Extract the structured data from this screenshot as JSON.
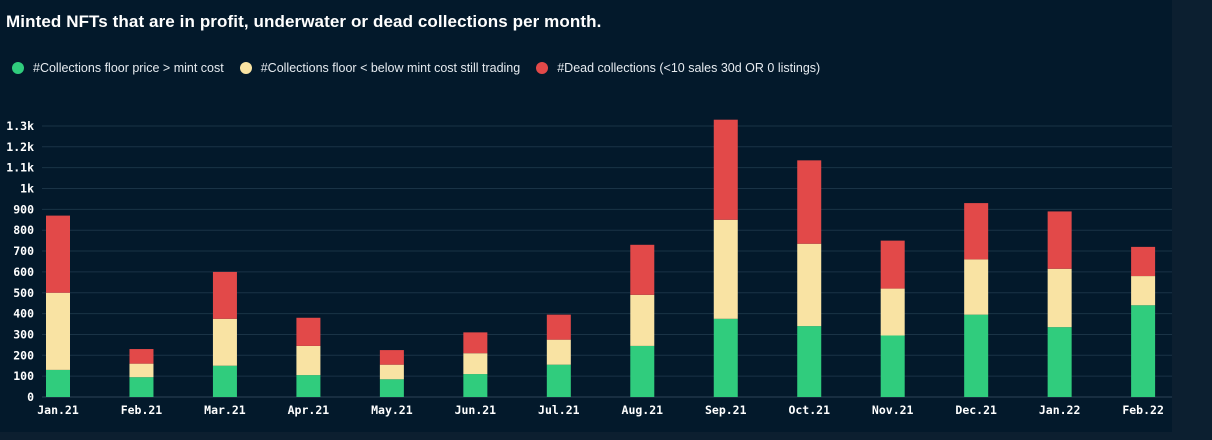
{
  "title": "Minted NFTs that are in profit, underwater or dead collections per month.",
  "chart_data": {
    "type": "bar",
    "stacked": true,
    "categories": [
      "Jan.21",
      "Feb.21",
      "Mar.21",
      "Apr.21",
      "May.21",
      "Jun.21",
      "Jul.21",
      "Aug.21",
      "Sep.21",
      "Oct.21",
      "Nov.21",
      "Dec.21",
      "Jan.22",
      "Feb.22"
    ],
    "series": [
      {
        "name": "#Collections floor price > mint cost",
        "color": "#30cc7d",
        "values": [
          130,
          95,
          150,
          105,
          85,
          110,
          155,
          245,
          375,
          340,
          295,
          395,
          335,
          440
        ]
      },
      {
        "name": "#Collections floor < below mint cost still trading",
        "color": "#f9e3a3",
        "values": [
          370,
          65,
          225,
          140,
          70,
          100,
          120,
          245,
          475,
          395,
          225,
          265,
          280,
          140
        ]
      },
      {
        "name": "#Dead collections (<10 sales 30d OR 0 listings)",
        "color": "#e24949",
        "values": [
          370,
          70,
          225,
          135,
          70,
          100,
          120,
          240,
          480,
          400,
          230,
          270,
          275,
          140
        ]
      }
    ],
    "y_ticks": [
      {
        "value": 0,
        "label": "0"
      },
      {
        "value": 100,
        "label": "100"
      },
      {
        "value": 200,
        "label": "200"
      },
      {
        "value": 300,
        "label": "300"
      },
      {
        "value": 400,
        "label": "400"
      },
      {
        "value": 500,
        "label": "500"
      },
      {
        "value": 600,
        "label": "600"
      },
      {
        "value": 700,
        "label": "700"
      },
      {
        "value": 800,
        "label": "800"
      },
      {
        "value": 900,
        "label": "900"
      },
      {
        "value": 1000,
        "label": "1k"
      },
      {
        "value": 1100,
        "label": "1.1k"
      },
      {
        "value": 1200,
        "label": "1.2k"
      },
      {
        "value": 1300,
        "label": "1.3k"
      }
    ],
    "ylim": [
      0,
      1350
    ],
    "grid": true,
    "legend_position": "top-left",
    "xlabel": "",
    "ylabel": ""
  }
}
